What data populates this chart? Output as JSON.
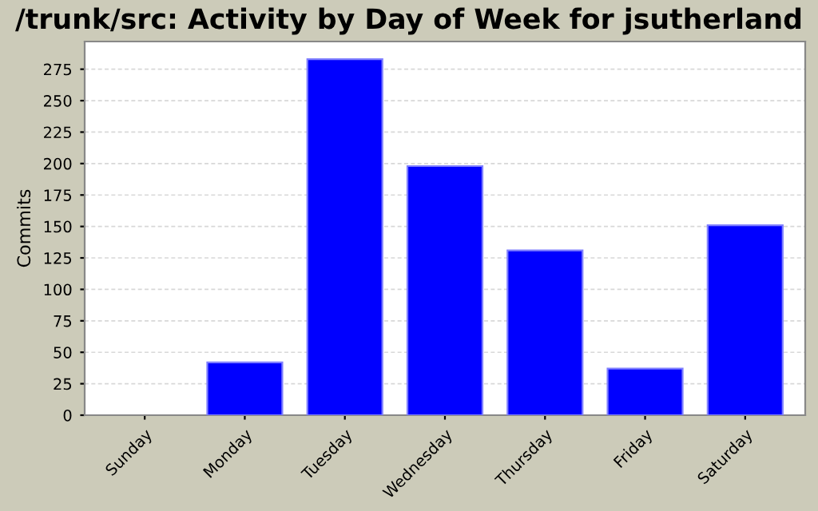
{
  "chart_data": {
    "type": "bar",
    "title": "/trunk/src: Activity by Day of Week for jsutherland",
    "ylabel": "Commits",
    "categories": [
      "Sunday",
      "Monday",
      "Tuesday",
      "Wednesday",
      "Thursday",
      "Friday",
      "Saturday"
    ],
    "values": [
      0,
      42,
      283,
      198,
      131,
      37,
      151
    ],
    "color": "#0000ff",
    "ylim": [
      0,
      297
    ],
    "yticks": [
      0,
      25,
      50,
      75,
      100,
      125,
      150,
      175,
      200,
      225,
      250,
      275
    ],
    "grid": "y"
  }
}
